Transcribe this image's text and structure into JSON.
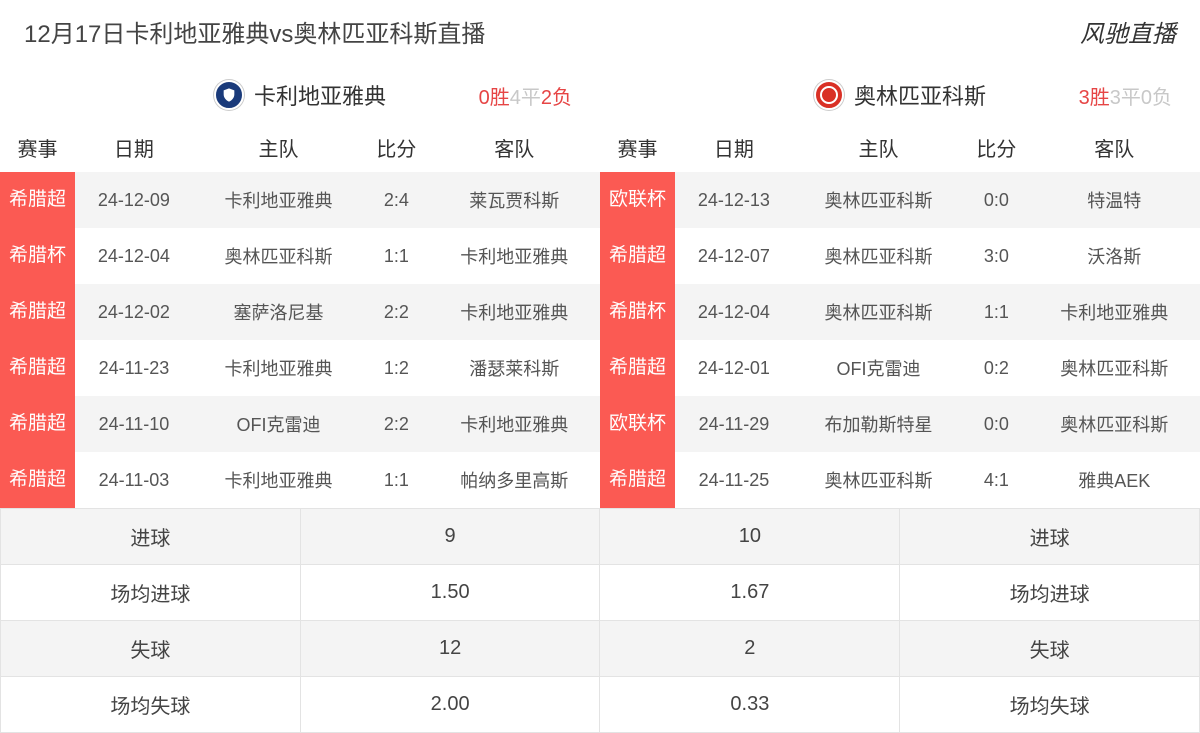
{
  "header": {
    "title": "12月17日卡利地亚雅典vs奥林匹亚科斯直播",
    "brand": "风驰直播"
  },
  "left": {
    "team": "卡利地亚雅典",
    "record": {
      "win": "0胜",
      "draw": "4平",
      "loss": "2负",
      "loss_zero": false
    },
    "badge_color": "#1a3a7a",
    "columns": [
      "赛事",
      "日期",
      "主队",
      "比分",
      "客队"
    ],
    "rows": [
      {
        "comp": "希腊超",
        "date": "24-12-09",
        "home": "卡利地亚雅典",
        "score": "2:4",
        "away": "莱瓦贾科斯"
      },
      {
        "comp": "希腊杯",
        "date": "24-12-04",
        "home": "奥林匹亚科斯",
        "score": "1:1",
        "away": "卡利地亚雅典"
      },
      {
        "comp": "希腊超",
        "date": "24-12-02",
        "home": "塞萨洛尼基",
        "score": "2:2",
        "away": "卡利地亚雅典"
      },
      {
        "comp": "希腊超",
        "date": "24-11-23",
        "home": "卡利地亚雅典",
        "score": "1:2",
        "away": "潘瑟莱科斯"
      },
      {
        "comp": "希腊超",
        "date": "24-11-10",
        "home": "OFI克雷迪",
        "score": "2:2",
        "away": "卡利地亚雅典"
      },
      {
        "comp": "希腊超",
        "date": "24-11-03",
        "home": "卡利地亚雅典",
        "score": "1:1",
        "away": "帕纳多里高斯"
      }
    ]
  },
  "right": {
    "team": "奥林匹亚科斯",
    "record": {
      "win": "3胜",
      "draw": "3平",
      "loss": "0负",
      "loss_zero": true
    },
    "badge_color": "#d93025",
    "columns": [
      "赛事",
      "日期",
      "主队",
      "比分",
      "客队"
    ],
    "rows": [
      {
        "comp": "欧联杯",
        "date": "24-12-13",
        "home": "奥林匹亚科斯",
        "score": "0:0",
        "away": "特温特"
      },
      {
        "comp": "希腊超",
        "date": "24-12-07",
        "home": "奥林匹亚科斯",
        "score": "3:0",
        "away": "沃洛斯"
      },
      {
        "comp": "希腊杯",
        "date": "24-12-04",
        "home": "奥林匹亚科斯",
        "score": "1:1",
        "away": "卡利地亚雅典"
      },
      {
        "comp": "希腊超",
        "date": "24-12-01",
        "home": "OFI克雷迪",
        "score": "0:2",
        "away": "奥林匹亚科斯"
      },
      {
        "comp": "欧联杯",
        "date": "24-11-29",
        "home": "布加勒斯特星",
        "score": "0:0",
        "away": "奥林匹亚科斯"
      },
      {
        "comp": "希腊超",
        "date": "24-11-25",
        "home": "奥林匹亚科斯",
        "score": "4:1",
        "away": "雅典AEK"
      }
    ]
  },
  "stats": {
    "labels": {
      "goals": "进球",
      "avg_goals": "场均进球",
      "conceded": "失球",
      "avg_conceded": "场均失球"
    },
    "left": {
      "goals": "9",
      "avg_goals": "1.50",
      "conceded": "12",
      "avg_conceded": "2.00"
    },
    "right": {
      "goals": "10",
      "avg_goals": "1.67",
      "conceded": "2",
      "avg_conceded": "0.33"
    }
  },
  "colors": {
    "tag_bg": "#fb5a53",
    "tag_text": "#ffffff",
    "stripe": "#f4f4f4",
    "border": "#e3e3e3",
    "win": "#e64545",
    "draw": "#c8c8c8"
  }
}
